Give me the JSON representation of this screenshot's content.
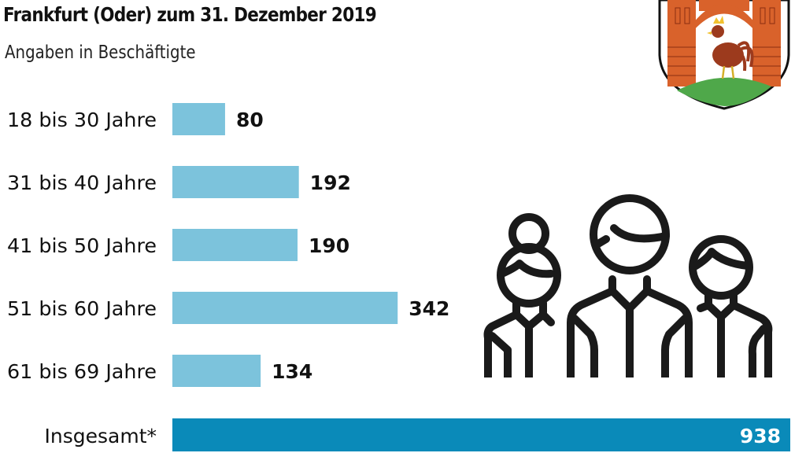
{
  "header": {
    "title": "Frankfurt (Oder) zum 31. Dezember 2019",
    "subtitle": "Angaben in Beschäftigte"
  },
  "icons": {
    "crest": "frankfurt-oder-coat-of-arms-rooster",
    "people": "people-group-outline-icon"
  },
  "colors": {
    "bar": "#7cc3dc",
    "total_bar": "#0a8ab9",
    "text": "#111111"
  },
  "chart_data": {
    "type": "bar",
    "orientation": "horizontal",
    "title": "Frankfurt (Oder) zum 31. Dezember 2019",
    "subtitle": "Angaben in Beschäftigte",
    "xlabel": "",
    "ylabel": "",
    "categories": [
      "18 bis 30 Jahre",
      "31 bis 40 Jahre",
      "41 bis 50 Jahre",
      "51 bis 60 Jahre",
      "61 bis 69 Jahre"
    ],
    "values": [
      80,
      192,
      190,
      342,
      134
    ],
    "total": {
      "label": "Insgesamt*",
      "value": 938
    },
    "xlim": [
      0,
      938
    ],
    "grid": false,
    "legend": "none"
  }
}
